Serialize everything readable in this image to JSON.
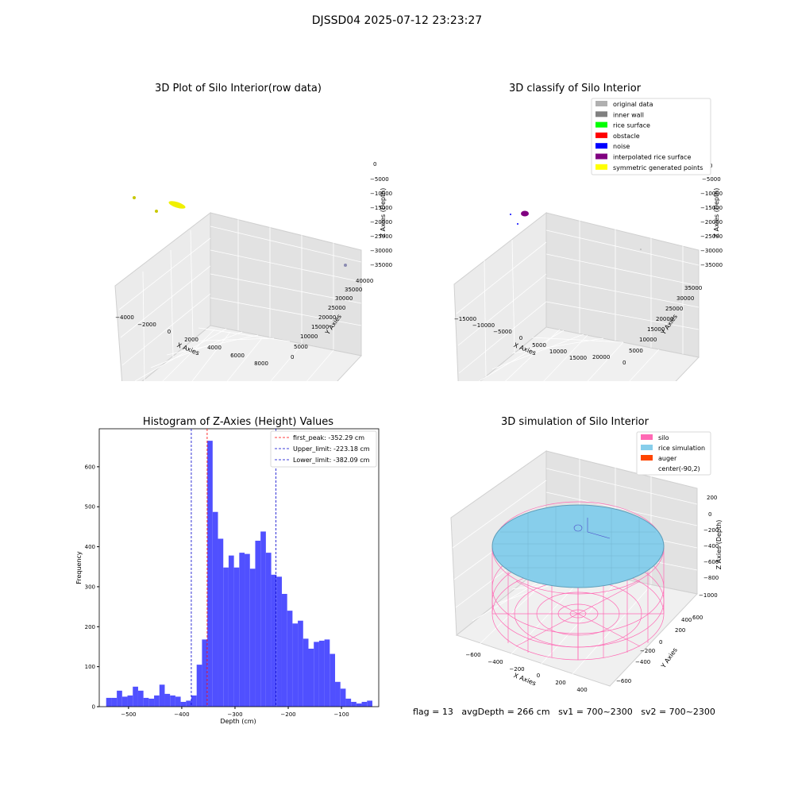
{
  "figure": {
    "suptitle": "DJSSD04 2025-07-12 23:23:27",
    "status": {
      "flag": "flag = 13",
      "avg_depth": "avgDepth = 266 cm",
      "sv1": "sv1 = 700~2300",
      "sv2": "sv2 = 700~2300"
    }
  },
  "colors": {
    "hist_bar": "#5050ff",
    "first_peak_line": "#ff0000",
    "limit_line": "#0000cc",
    "silo": "#ff69b4",
    "rice": "#87ceeb",
    "auger": "#ff4500",
    "pane": "#ebebeb"
  },
  "panels": {
    "raw": {
      "title": "3D Plot of Silo Interior(row data)",
      "xlabel": "X Axies",
      "ylabel": "Y Axies",
      "zlabel": "Z Axies (Depth)",
      "xticks": [
        "−4000",
        "−2000",
        "0",
        "2000",
        "4000",
        "6000",
        "8000"
      ],
      "yticks": [
        "0",
        "5000",
        "10000",
        "15000",
        "20000",
        "25000",
        "30000",
        "35000",
        "40000"
      ],
      "zticks": [
        "0",
        "−5000",
        "−10000",
        "−15000",
        "−20000",
        "−25000",
        "−30000",
        "−35000"
      ]
    },
    "classify": {
      "title": "3D classify of Silo Interior",
      "xlabel": "X Axies",
      "ylabel": "Y Axies",
      "zlabel": "Z Axies (Depth)",
      "xticks": [
        "−15000",
        "−10000",
        "−5000",
        "0",
        "5000",
        "10000",
        "15000",
        "20000"
      ],
      "yticks": [
        "0",
        "5000",
        "10000",
        "15000",
        "20000",
        "25000",
        "30000",
        "35000"
      ],
      "zticks": [
        "0",
        "−5000",
        "−10000",
        "−15000",
        "−20000",
        "−25000",
        "−30000",
        "−35000"
      ],
      "legend": [
        {
          "label": "original data",
          "color": "#b0b0b0"
        },
        {
          "label": "inner wall",
          "color": "#808080"
        },
        {
          "label": "rice surface",
          "color": "#00ff00"
        },
        {
          "label": "obstacle",
          "color": "#ff0000"
        },
        {
          "label": "noise",
          "color": "#0000ff"
        },
        {
          "label": "interpolated rice surface",
          "color": "#800080"
        },
        {
          "label": "symmetric generated points",
          "color": "#ffff00"
        }
      ]
    },
    "simulation": {
      "title": "3D simulation of Silo Interior",
      "xlabel": "X Axies",
      "ylabel": "Y Axies",
      "zlabel": "Z Axies (Depth)",
      "xticks": [
        "−600",
        "−400",
        "−200",
        "0",
        "200",
        "400"
      ],
      "yticks": [
        "−600",
        "−400",
        "−200",
        "0",
        "200",
        "400",
        "600"
      ],
      "zticks": [
        "200",
        "0",
        "−200",
        "−400",
        "−600",
        "−800",
        "−1000"
      ],
      "legend": [
        {
          "label": "silo",
          "color": "#ff69b4"
        },
        {
          "label": "rice simulation",
          "color": "#87ceeb"
        },
        {
          "label": "auger",
          "color": "#ff4500"
        },
        {
          "label": "center(-90,2)",
          "color": ""
        }
      ]
    }
  },
  "chart_data": [
    {
      "type": "bar",
      "title": "Histogram of Z-Axies (Height) Values",
      "xlabel": "Depth (cm)",
      "ylabel": "Frequency",
      "xlim": [
        -555,
        -30
      ],
      "ylim": [
        0,
        695
      ],
      "xticks": [
        -500,
        -400,
        -300,
        -200,
        -100
      ],
      "yticks": [
        0,
        100,
        200,
        300,
        400,
        500,
        600
      ],
      "bin_start": -542,
      "bin_width": 10,
      "values": [
        22,
        22,
        40,
        25,
        28,
        50,
        40,
        22,
        20,
        28,
        55,
        32,
        28,
        25,
        12,
        15,
        28,
        105,
        168,
        665,
        487,
        420,
        348,
        378,
        348,
        385,
        382,
        345,
        415,
        438,
        385,
        330,
        325,
        282,
        240,
        208,
        215,
        170,
        145,
        162,
        165,
        168,
        132,
        62,
        45,
        20,
        12,
        8,
        12,
        15
      ],
      "lines": [
        {
          "name": "first_peak: -352.29 cm",
          "x": -352.29,
          "color": "#ff0000"
        },
        {
          "name": "Upper_limit: -223.18 cm",
          "x": -223.18,
          "color": "#0000cc"
        },
        {
          "name": "Lower_limit: -382.09 cm",
          "x": -382.09,
          "color": "#0000cc"
        }
      ],
      "legend_position": "top-right"
    }
  ]
}
